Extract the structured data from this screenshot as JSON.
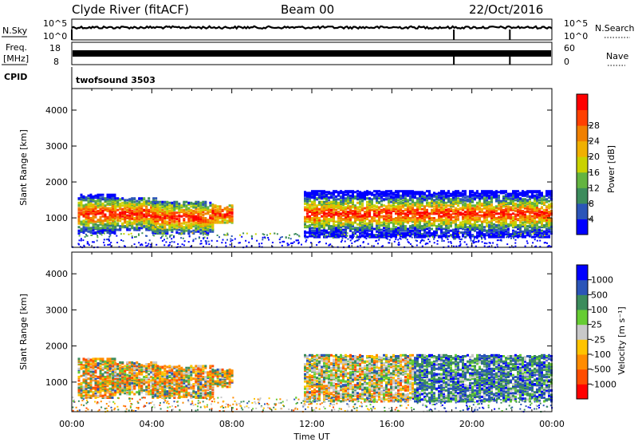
{
  "header": {
    "station": "Clyde River (fitACF)",
    "beam": "Beam 00",
    "date": "22/Oct/2016"
  },
  "side_labels": {
    "nsky": "N.Sky",
    "freq_line1": "Freq.",
    "freq_line2": "[MHz]",
    "cpid": "CPID",
    "nsearch": "N.Search",
    "nave": "Nave",
    "cpid_value": "twofsound 3503"
  },
  "colors": {
    "power_scale": [
      "#0000ff",
      "#2b55b8",
      "#3c8c5c",
      "#63b440",
      "#c9d200",
      "#f0b000",
      "#f08000",
      "#ff4000",
      "#ff0000"
    ],
    "velocity_scale": [
      "#ff0000",
      "#ff4d00",
      "#ff8c00",
      "#ffc400",
      "#c8c8c8",
      "#66cc33",
      "#3c8c5c",
      "#2b55b8",
      "#0000ff"
    ],
    "ground_scatter": "#c8c8c8"
  },
  "chart_data": [
    {
      "type": "line",
      "panel": "noise",
      "ylabel_left": "N.Sky",
      "ylabel_right": "N.Search",
      "ytick_labels": [
        "10^5",
        "10^0"
      ],
      "x": [
        "00:00",
        "04:00",
        "08:00",
        "12:00",
        "16:00",
        "20:00",
        "00:00"
      ],
      "series": [
        {
          "name": "N.Sky",
          "level": 0.6
        }
      ]
    },
    {
      "type": "line",
      "panel": "frequency",
      "ylabel_left": "Freq. [MHz]",
      "ylabel_right": "Nave",
      "ytick_labels_left": [
        "18",
        "8"
      ],
      "ytick_labels_right": [
        "60",
        "0"
      ],
      "ylim_left": [
        8,
        18
      ],
      "ylim_right": [
        0,
        60
      ],
      "series": [
        {
          "name": "Freq.",
          "level": 0.5
        }
      ]
    },
    {
      "type": "heatmap",
      "panel": "power",
      "ylabel": "Slant Range [km]",
      "yticks": [
        1000,
        2000,
        3000,
        4000
      ],
      "ylim": [
        180,
        4600
      ],
      "xticks": [
        "00:00",
        "04:00",
        "08:00",
        "12:00",
        "16:00",
        "20:00",
        "00:00"
      ],
      "xlim_hours": [
        0,
        24
      ],
      "colorbar_label": "Power [dB]",
      "colorbar_ticks": [
        "4",
        "8",
        "12",
        "16",
        "20",
        "24",
        "28"
      ]
    },
    {
      "type": "heatmap",
      "panel": "velocity",
      "ylabel": "Slant Range [km]",
      "yticks": [
        1000,
        2000,
        3000,
        4000
      ],
      "ylim": [
        180,
        4600
      ],
      "xticks": [
        "00:00",
        "04:00",
        "08:00",
        "12:00",
        "16:00",
        "20:00",
        "00:00"
      ],
      "xlim_hours": [
        0,
        24
      ],
      "xlabel": "Time UT",
      "colorbar_label": "Velocity [m s⁻¹]",
      "colorbar_ticks": [
        "1000",
        "500",
        "100",
        "25",
        "-25",
        "-100",
        "-500",
        "-1000"
      ]
    }
  ]
}
